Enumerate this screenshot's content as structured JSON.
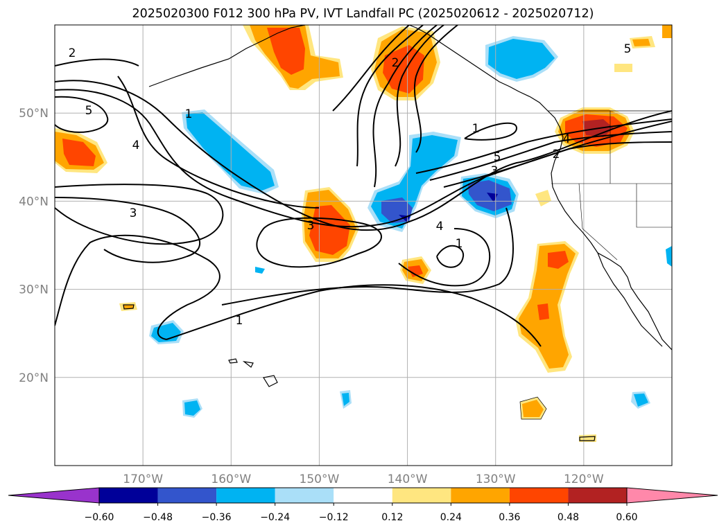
{
  "title": "2025020300 F012 300 hPa PV, IVT Landfall PC (2025020612 - 2025020712)",
  "map": {
    "projection": "PlateCarree",
    "lon_range": [
      -180,
      -110
    ],
    "lat_range": [
      10,
      60
    ],
    "lat_ticks": [
      {
        "value": 50,
        "label": "50°N"
      },
      {
        "value": 40,
        "label": "40°N"
      },
      {
        "value": 30,
        "label": "30°N"
      },
      {
        "value": 20,
        "label": "20°N"
      }
    ],
    "lon_ticks": [
      {
        "value": -170,
        "label": "170°W"
      },
      {
        "value": -160,
        "label": "160°W"
      },
      {
        "value": -150,
        "label": "150°W"
      },
      {
        "value": -140,
        "label": "140°W"
      },
      {
        "value": -130,
        "label": "130°W"
      },
      {
        "value": -120,
        "label": "120°W"
      }
    ],
    "grid": true,
    "contour_labels": [
      "2",
      "5",
      "4",
      "3",
      "1",
      "1",
      "3",
      "2",
      "1",
      "5",
      "3",
      "4",
      "1",
      "2",
      "4",
      "5"
    ]
  },
  "colorbar": {
    "extend": "both",
    "ticks": [
      "−0.60",
      "−0.48",
      "−0.36",
      "−0.24",
      "−0.12",
      "0.12",
      "0.24",
      "0.36",
      "0.48",
      "0.60"
    ],
    "colors": [
      "#9933cc",
      "#000099",
      "#3355cc",
      "#00b3f2",
      "#aadff8",
      "#ffffff",
      "#ffe680",
      "#ffa500",
      "#ff4500",
      "#b22222",
      "#ff88aa"
    ]
  }
}
